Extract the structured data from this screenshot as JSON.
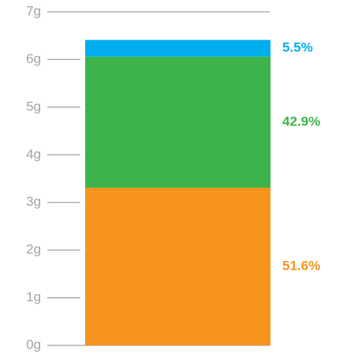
{
  "chart_data": {
    "type": "stacked-bar",
    "categories": [
      null
    ],
    "series": [
      {
        "color": "#f7941d",
        "values": [
          3.31
        ],
        "label": "51.6%"
      },
      {
        "color": "#3cb44b",
        "values": [
          2.75
        ],
        "label": "42.9%"
      },
      {
        "color": "#00aeef",
        "values": [
          0.35
        ],
        "label": "5.5%"
      }
    ],
    "ylim": [
      0,
      7
    ],
    "yticks": [
      {
        "value": 0,
        "label": "0g"
      },
      {
        "value": 1,
        "label": "1g"
      },
      {
        "value": 2,
        "label": "2g"
      },
      {
        "value": 3,
        "label": "3g"
      },
      {
        "value": 4,
        "label": "4g"
      },
      {
        "value": 5,
        "label": "5g"
      },
      {
        "value": 6,
        "label": "6g"
      },
      {
        "value": 7,
        "label": "7g"
      }
    ],
    "grid": true
  }
}
